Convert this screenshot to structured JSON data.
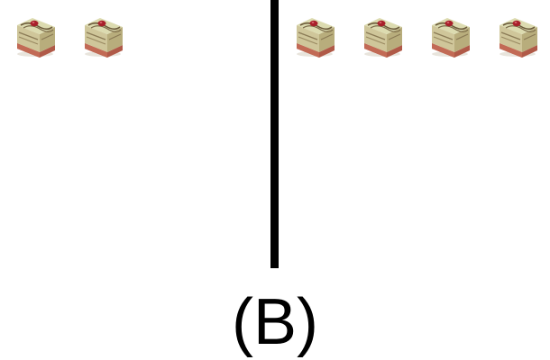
{
  "panel": {
    "label": "(B)",
    "left_group": {
      "count": 2,
      "item_icon": "cake-slice-icon"
    },
    "right_group": {
      "count": 4,
      "item_icon": "cake-slice-icon"
    }
  },
  "colors": {
    "divider": "#000000",
    "background": "#ffffff",
    "cake_top": "#d8d6a4",
    "cake_side": "#c9b88a",
    "cake_base": "#b05a48",
    "cherry": "#a8202a"
  }
}
